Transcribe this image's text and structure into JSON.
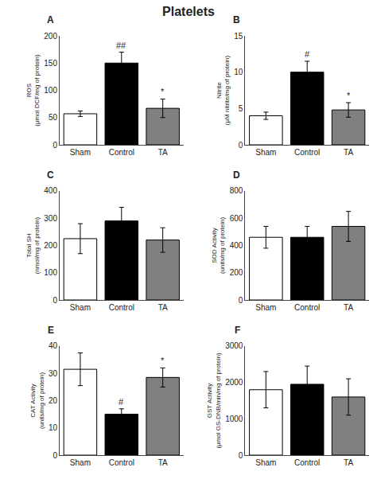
{
  "title": "Platelets",
  "chart_data": [
    {
      "type": "bar",
      "title": "A",
      "ylabel": "ROS\n(μmol DCF/mg of protein)",
      "categories": [
        "Sham",
        "Control",
        "TA"
      ],
      "values": [
        57,
        150,
        67
      ],
      "errors": [
        5,
        20,
        17
      ],
      "colors": [
        "white",
        "black",
        "#808080"
      ],
      "annotations": [
        null,
        "##",
        "*"
      ],
      "ylim": [
        0,
        200
      ],
      "yticks": [
        0,
        50,
        100,
        150,
        200
      ],
      "grid": false
    },
    {
      "type": "bar",
      "title": "B",
      "ylabel": "Nitrite\n(μM nitrite/mg of protein)",
      "categories": [
        "Sham",
        "Control",
        "TA"
      ],
      "values": [
        4.0,
        10.0,
        4.8
      ],
      "errors": [
        0.5,
        1.5,
        1.0
      ],
      "colors": [
        "white",
        "black",
        "#808080"
      ],
      "annotations": [
        null,
        "#",
        "*"
      ],
      "ylim": [
        0,
        15
      ],
      "yticks": [
        0,
        5,
        10,
        15
      ],
      "grid": false
    },
    {
      "type": "bar",
      "title": "C",
      "ylabel": "Total SH\n(nmol/mg of protein)",
      "categories": [
        "Sham",
        "Control",
        "TA"
      ],
      "values": [
        225,
        290,
        220
      ],
      "errors": [
        55,
        50,
        45
      ],
      "colors": [
        "white",
        "black",
        "#808080"
      ],
      "annotations": [
        null,
        null,
        null
      ],
      "ylim": [
        0,
        400
      ],
      "yticks": [
        0,
        100,
        200,
        300,
        400
      ],
      "grid": false
    },
    {
      "type": "bar",
      "title": "D",
      "ylabel": "SOD Activity\n(units/mg of protein)",
      "categories": [
        "Sham",
        "Control",
        "TA"
      ],
      "values": [
        460,
        460,
        540
      ],
      "errors": [
        80,
        80,
        110
      ],
      "colors": [
        "white",
        "black",
        "#808080"
      ],
      "annotations": [
        null,
        null,
        null
      ],
      "ylim": [
        0,
        800
      ],
      "yticks": [
        0,
        200,
        400,
        600,
        800
      ],
      "grid": false
    },
    {
      "type": "bar",
      "title": "E",
      "ylabel": "CAT Activity\n(units/mg of protein)",
      "categories": [
        "Sham",
        "Control",
        "TA"
      ],
      "values": [
        31.5,
        15.0,
        28.5
      ],
      "errors": [
        6.0,
        2.0,
        3.5
      ],
      "colors": [
        "white",
        "black",
        "#808080"
      ],
      "annotations": [
        null,
        "#",
        "*"
      ],
      "ylim": [
        0,
        40
      ],
      "yticks": [
        0,
        10,
        20,
        30,
        40
      ],
      "grid": false
    },
    {
      "type": "bar",
      "title": "F",
      "ylabel": "GST Activity\n(μmol GS-DNB/min/mg of protein)",
      "categories": [
        "Sham",
        "Control",
        "TA"
      ],
      "values": [
        1800,
        1950,
        1600
      ],
      "errors": [
        500,
        500,
        500
      ],
      "colors": [
        "white",
        "black",
        "#808080"
      ],
      "annotations": [
        null,
        null,
        null
      ],
      "ylim": [
        0,
        3000
      ],
      "yticks": [
        0,
        1000,
        2000,
        3000
      ],
      "grid": false
    }
  ]
}
